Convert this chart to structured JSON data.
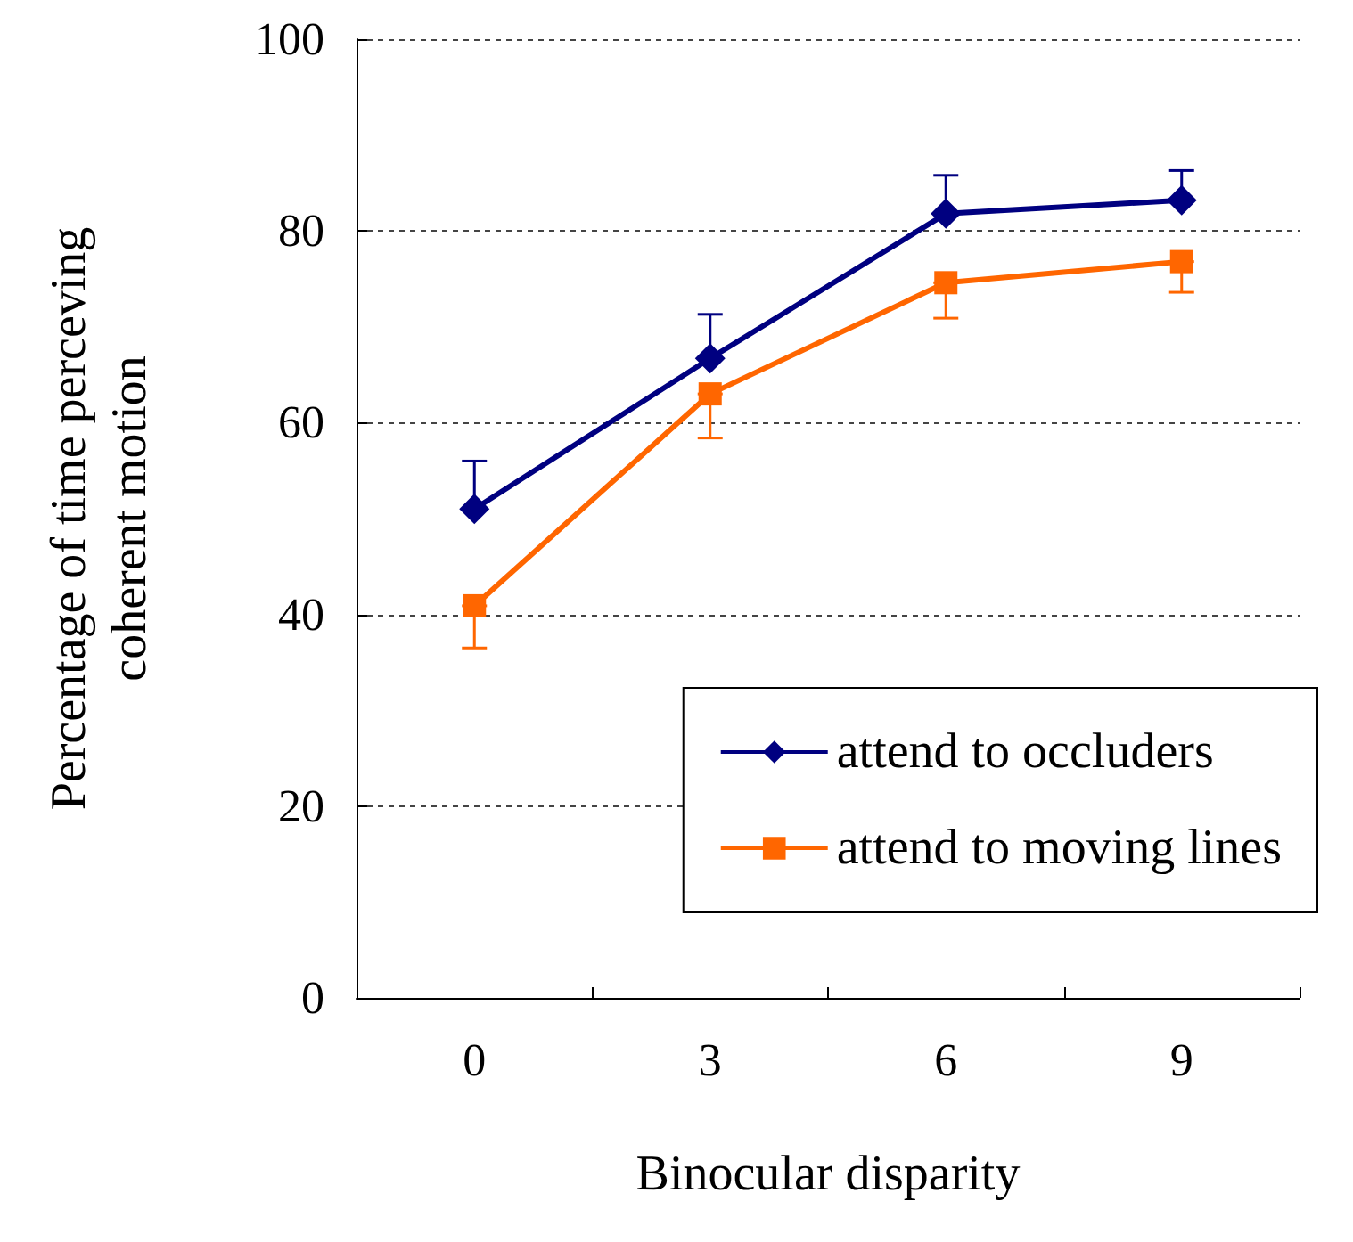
{
  "chart_data": {
    "type": "line",
    "xlabel": "Binocular disparity",
    "ylabel": "Percentage of time perceving\ncoherent motion",
    "categories": [
      "0",
      "3",
      "6",
      "9"
    ],
    "series": [
      {
        "name": "attend to occluders",
        "color": "#000080",
        "marker": "diamond",
        "values": [
          51,
          66.7,
          81.8,
          83.2
        ],
        "errors": [
          [
            51,
            56
          ],
          [
            66.7,
            71.3
          ],
          [
            81.8,
            85.8
          ],
          [
            83.2,
            86.3
          ]
        ]
      },
      {
        "name": "attend to moving lines",
        "color": "#ff6600",
        "marker": "square",
        "values": [
          40.9,
          63,
          74.6,
          76.8
        ],
        "errors": [
          [
            36.5,
            40.9
          ],
          [
            58.4,
            63
          ],
          [
            70.9,
            74.6
          ],
          [
            73.6,
            76.8
          ]
        ]
      }
    ],
    "ylim": [
      0,
      100
    ],
    "yticks": [
      0,
      20,
      40,
      60,
      80,
      100
    ],
    "grid": "y",
    "legend": "bottom right",
    "line_style": "solid"
  }
}
